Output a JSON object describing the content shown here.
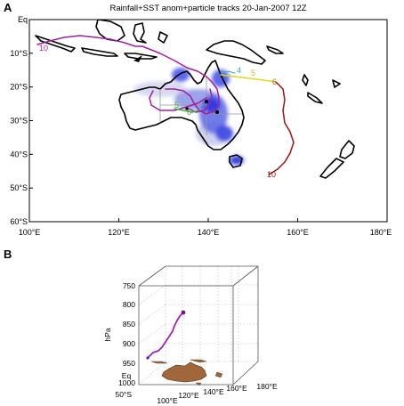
{
  "panel_a": {
    "letter": "A",
    "title": "Rainfall+SST anom+particle tracks  20-Jan-2007 12Z",
    "lat_ticks": [
      "Eq",
      "10°S",
      "20°S",
      "30°S",
      "40°S",
      "50°S",
      "60°S"
    ],
    "lon_ticks": [
      "100°E",
      "120°E",
      "140°E",
      "160°E",
      "180°E"
    ],
    "track_labels": {
      "magenta_start": "10",
      "green_5": "5",
      "green_6": "6",
      "yellow_4": "4",
      "yellow_5": "5",
      "yellow_6": "6",
      "red_10": "10"
    },
    "colors": {
      "rain": "#3040e0",
      "track_magenta": "#a020a0",
      "track_red": "#a01010",
      "track_yellow": "#e8e020",
      "track_green": "#40b040",
      "coast": "#000000"
    }
  },
  "panel_b": {
    "letter": "B",
    "z_label": "hPa",
    "z_ticks": [
      "750",
      "800",
      "850",
      "900",
      "950",
      "1000"
    ],
    "lat_label": "Eq",
    "lat_ticks": [
      "50°S"
    ],
    "lon_ticks": [
      "100°E",
      "120°E",
      "140°E",
      "160°E",
      "180°E"
    ],
    "colors": {
      "land": "#a0683a",
      "track": "#a020c0"
    }
  }
}
